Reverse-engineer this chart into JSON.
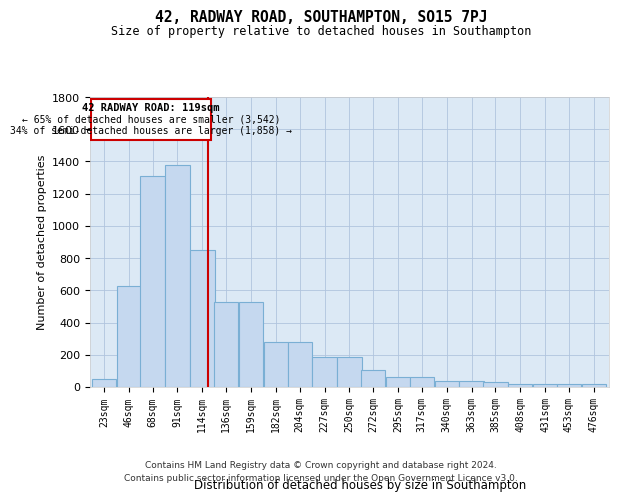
{
  "title": "42, RADWAY ROAD, SOUTHAMPTON, SO15 7PJ",
  "subtitle": "Size of property relative to detached houses in Southampton",
  "xlabel": "Distribution of detached houses by size in Southampton",
  "ylabel": "Number of detached properties",
  "footer_line1": "Contains HM Land Registry data © Crown copyright and database right 2024.",
  "footer_line2": "Contains public sector information licensed under the Open Government Licence v3.0.",
  "annotation_line1": "42 RADWAY ROAD: 119sqm",
  "annotation_line2": "← 65% of detached houses are smaller (3,542)",
  "annotation_line3": "34% of semi-detached houses are larger (1,858) →",
  "property_size": 119,
  "categories": [
    "23sqm",
    "46sqm",
    "68sqm",
    "91sqm",
    "114sqm",
    "136sqm",
    "159sqm",
    "182sqm",
    "204sqm",
    "227sqm",
    "250sqm",
    "272sqm",
    "295sqm",
    "317sqm",
    "340sqm",
    "363sqm",
    "385sqm",
    "408sqm",
    "431sqm",
    "453sqm",
    "476sqm"
  ],
  "values": [
    50,
    630,
    1310,
    1380,
    850,
    530,
    530,
    280,
    280,
    185,
    185,
    105,
    65,
    65,
    35,
    35,
    30,
    20,
    20,
    20,
    20
  ],
  "bar_color": "#c5d8ef",
  "bar_edge_color": "#7aafd4",
  "vline_color": "#cc0000",
  "annotation_box_color": "#cc0000",
  "ylim": [
    0,
    1800
  ],
  "bg_color": "#dce9f5"
}
